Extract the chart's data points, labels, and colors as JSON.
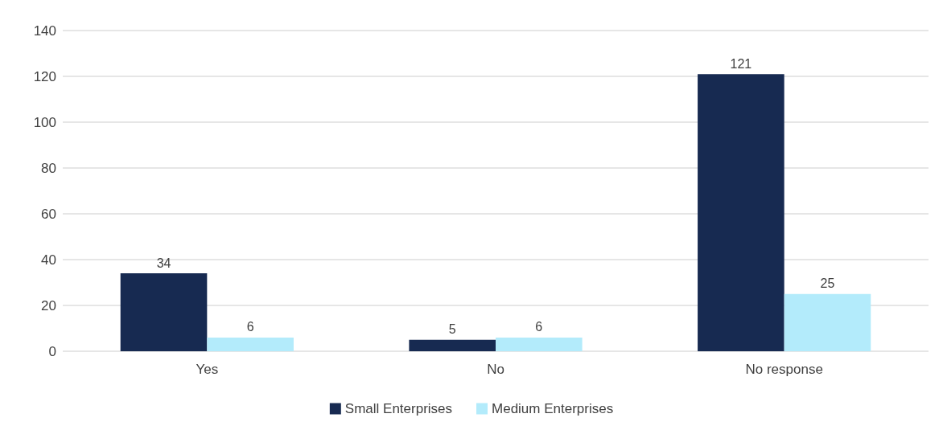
{
  "chart_data": {
    "type": "bar",
    "categories": [
      "Yes",
      "No",
      "No response"
    ],
    "series": [
      {
        "name": "Small Enterprises",
        "color": "#172a51",
        "values": [
          34,
          5,
          121
        ]
      },
      {
        "name": "Medium Enterprises",
        "color": "#b3ebfb",
        "values": [
          6,
          6,
          25
        ]
      }
    ],
    "ylim": [
      0,
      140
    ],
    "yticks": [
      0,
      20,
      40,
      60,
      80,
      100,
      120,
      140
    ],
    "grid": "y",
    "legend": "bottom",
    "data_labels": true
  }
}
